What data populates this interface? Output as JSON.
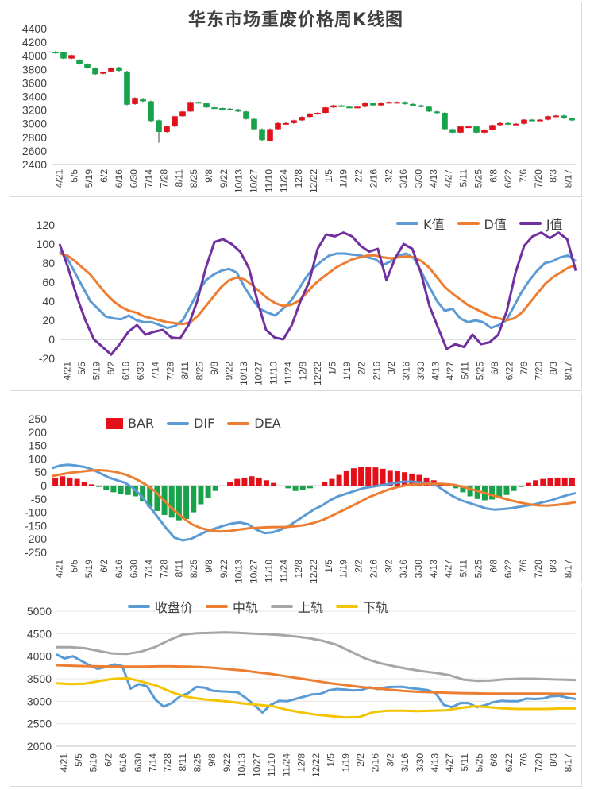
{
  "x_ticks": [
    "4/21",
    "5/5",
    "5/19",
    "6/2",
    "6/16",
    "6/30",
    "7/14",
    "7/28",
    "8/11",
    "8/25",
    "9/8",
    "9/22",
    "10/13",
    "10/27",
    "11/10",
    "11/24",
    "12/8",
    "12/22",
    "1/5",
    "1/19",
    "2/2",
    "2/16",
    "3/2",
    "3/16",
    "3/30",
    "4/13",
    "4/27",
    "5/11",
    "5/25",
    "6/8",
    "6/22",
    "7/6",
    "7/20",
    "8/3",
    "8/17"
  ],
  "chart_data": [
    {
      "type": "candlestick",
      "title": "华东市场重废价格周K线图",
      "ylim": [
        2400,
        4400
      ],
      "yticks": [
        2400,
        2600,
        2800,
        3000,
        3200,
        3400,
        3600,
        3800,
        4000,
        4200,
        4400
      ],
      "colors": {
        "up": "#e3101a",
        "down": "#17a34a"
      },
      "candles": [
        {
          "o": 4060,
          "c": 4040,
          "h": 4070,
          "l": 4030
        },
        {
          "o": 4050,
          "c": 3960,
          "h": 4060,
          "l": 3950
        },
        {
          "o": 3960,
          "c": 4010,
          "h": 4020,
          "l": 3950
        },
        {
          "o": 3940,
          "c": 3880,
          "h": 3950,
          "l": 3870
        },
        {
          "o": 3880,
          "c": 3820,
          "h": 3890,
          "l": 3810
        },
        {
          "o": 3820,
          "c": 3730,
          "h": 3830,
          "l": 3720
        },
        {
          "o": 3740,
          "c": 3760,
          "h": 3770,
          "l": 3730
        },
        {
          "o": 3770,
          "c": 3820,
          "h": 3830,
          "l": 3760
        },
        {
          "o": 3830,
          "c": 3780,
          "h": 3840,
          "l": 3770
        },
        {
          "o": 3770,
          "c": 3280,
          "h": 3780,
          "l": 3270
        },
        {
          "o": 3290,
          "c": 3380,
          "h": 3390,
          "l": 3280
        },
        {
          "o": 3370,
          "c": 3330,
          "h": 3380,
          "l": 3320
        },
        {
          "o": 3330,
          "c": 3040,
          "h": 3340,
          "l": 3030
        },
        {
          "o": 3050,
          "c": 2880,
          "h": 3060,
          "l": 2720
        },
        {
          "o": 2880,
          "c": 2960,
          "h": 2970,
          "l": 2870
        },
        {
          "o": 2960,
          "c": 3110,
          "h": 3120,
          "l": 2950
        },
        {
          "o": 3110,
          "c": 3180,
          "h": 3190,
          "l": 3100
        },
        {
          "o": 3180,
          "c": 3320,
          "h": 3330,
          "l": 3170
        },
        {
          "o": 3320,
          "c": 3310,
          "h": 3330,
          "l": 3300
        },
        {
          "o": 3300,
          "c": 3240,
          "h": 3310,
          "l": 3230
        },
        {
          "o": 3240,
          "c": 3230,
          "h": 3250,
          "l": 3220
        },
        {
          "o": 3230,
          "c": 3220,
          "h": 3240,
          "l": 3210
        },
        {
          "o": 3220,
          "c": 3210,
          "h": 3230,
          "l": 3200
        },
        {
          "o": 3210,
          "c": 3180,
          "h": 3220,
          "l": 3170
        },
        {
          "o": 3180,
          "c": 3070,
          "h": 3190,
          "l": 3060
        },
        {
          "o": 3070,
          "c": 2920,
          "h": 3080,
          "l": 2910
        },
        {
          "o": 2920,
          "c": 2760,
          "h": 2930,
          "l": 2750
        },
        {
          "o": 2750,
          "c": 2920,
          "h": 2930,
          "l": 2740
        },
        {
          "o": 2920,
          "c": 3010,
          "h": 3020,
          "l": 2910
        },
        {
          "o": 3000,
          "c": 3010,
          "h": 3020,
          "l": 2990
        },
        {
          "o": 3010,
          "c": 3050,
          "h": 3060,
          "l": 3000
        },
        {
          "o": 3050,
          "c": 3100,
          "h": 3110,
          "l": 3040
        },
        {
          "o": 3100,
          "c": 3150,
          "h": 3160,
          "l": 3090
        },
        {
          "o": 3140,
          "c": 3160,
          "h": 3170,
          "l": 3130
        },
        {
          "o": 3160,
          "c": 3240,
          "h": 3250,
          "l": 3150
        },
        {
          "o": 3240,
          "c": 3270,
          "h": 3280,
          "l": 3230
        },
        {
          "o": 3270,
          "c": 3260,
          "h": 3280,
          "l": 3250
        },
        {
          "o": 3250,
          "c": 3240,
          "h": 3260,
          "l": 3240
        },
        {
          "o": 3240,
          "c": 3250,
          "h": 3260,
          "l": 3230
        },
        {
          "o": 3250,
          "c": 3310,
          "h": 3320,
          "l": 3240
        },
        {
          "o": 3300,
          "c": 3270,
          "h": 3310,
          "l": 3260
        },
        {
          "o": 3270,
          "c": 3310,
          "h": 3320,
          "l": 3260
        },
        {
          "o": 3310,
          "c": 3320,
          "h": 3330,
          "l": 3300
        },
        {
          "o": 3320,
          "c": 3320,
          "h": 3330,
          "l": 3310
        },
        {
          "o": 3320,
          "c": 3290,
          "h": 3330,
          "l": 3280
        },
        {
          "o": 3290,
          "c": 3270,
          "h": 3300,
          "l": 3260
        },
        {
          "o": 3270,
          "c": 3250,
          "h": 3280,
          "l": 3240
        },
        {
          "o": 3250,
          "c": 3180,
          "h": 3260,
          "l": 3170
        },
        {
          "o": 3180,
          "c": 3160,
          "h": 3190,
          "l": 3150
        },
        {
          "o": 3160,
          "c": 2920,
          "h": 3170,
          "l": 2910
        },
        {
          "o": 2920,
          "c": 2870,
          "h": 2930,
          "l": 2860
        },
        {
          "o": 2870,
          "c": 2960,
          "h": 2970,
          "l": 2860
        },
        {
          "o": 2960,
          "c": 2960,
          "h": 2970,
          "l": 2950
        },
        {
          "o": 2960,
          "c": 2870,
          "h": 2970,
          "l": 2860
        },
        {
          "o": 2870,
          "c": 2910,
          "h": 2920,
          "l": 2860
        },
        {
          "o": 2910,
          "c": 2980,
          "h": 2990,
          "l": 2900
        },
        {
          "o": 2980,
          "c": 3010,
          "h": 3020,
          "l": 2970
        },
        {
          "o": 3010,
          "c": 3000,
          "h": 3020,
          "l": 2990
        },
        {
          "o": 3000,
          "c": 3000,
          "h": 3010,
          "l": 2990
        },
        {
          "o": 3000,
          "c": 3060,
          "h": 3070,
          "l": 2990
        },
        {
          "o": 3060,
          "c": 3050,
          "h": 3070,
          "l": 3040
        },
        {
          "o": 3050,
          "c": 3060,
          "h": 3070,
          "l": 3040
        },
        {
          "o": 3060,
          "c": 3110,
          "h": 3120,
          "l": 3050
        },
        {
          "o": 3110,
          "c": 3120,
          "h": 3130,
          "l": 3100
        },
        {
          "o": 3120,
          "c": 3080,
          "h": 3130,
          "l": 3070
        },
        {
          "o": 3080,
          "c": 3050,
          "h": 3090,
          "l": 3040
        }
      ]
    },
    {
      "type": "line",
      "title": "",
      "ylim": [
        -20,
        120
      ],
      "yticks": [
        -20,
        0,
        20,
        40,
        60,
        80,
        100,
        120
      ],
      "series": [
        {
          "name": "K值",
          "color": "#5b9bd5",
          "values": [
            92,
            85,
            70,
            55,
            40,
            32,
            24,
            22,
            21,
            25,
            20,
            18,
            18,
            15,
            12,
            14,
            20,
            35,
            50,
            62,
            68,
            72,
            74,
            70,
            55,
            42,
            32,
            28,
            25,
            32,
            40,
            52,
            65,
            75,
            82,
            88,
            90,
            90,
            89,
            88,
            86,
            84,
            78,
            82,
            88,
            90,
            85,
            70,
            55,
            40,
            30,
            32,
            22,
            18,
            20,
            18,
            12,
            15,
            20,
            35,
            50,
            62,
            72,
            80,
            82,
            86,
            88,
            82
          ]
        },
        {
          "name": "D值",
          "color": "#ed7d31",
          "values": [
            90,
            88,
            82,
            75,
            68,
            58,
            48,
            40,
            34,
            30,
            28,
            24,
            22,
            20,
            18,
            17,
            16,
            18,
            25,
            35,
            45,
            55,
            62,
            65,
            63,
            57,
            50,
            43,
            38,
            35,
            36,
            40,
            48,
            57,
            64,
            70,
            76,
            80,
            84,
            86,
            88,
            88,
            86,
            85,
            86,
            87,
            86,
            82,
            75,
            65,
            55,
            48,
            42,
            36,
            32,
            28,
            24,
            22,
            20,
            22,
            28,
            38,
            48,
            58,
            65,
            70,
            75,
            78
          ]
        },
        {
          "name": "J值",
          "color": "#7030a0",
          "values": [
            100,
            75,
            45,
            20,
            0,
            -8,
            -16,
            -5,
            8,
            15,
            5,
            8,
            10,
            2,
            1,
            15,
            40,
            75,
            102,
            105,
            100,
            92,
            75,
            40,
            10,
            2,
            0,
            15,
            40,
            60,
            95,
            110,
            108,
            112,
            108,
            98,
            92,
            95,
            62,
            85,
            100,
            95,
            70,
            35,
            12,
            -10,
            -5,
            -8,
            5,
            -5,
            -3,
            5,
            30,
            70,
            98,
            108,
            112,
            106,
            112,
            105,
            72
          ]
        }
      ]
    },
    {
      "type": "bar+line",
      "title": "",
      "ylim": [
        -250,
        250
      ],
      "yticks": [
        -250,
        -200,
        -150,
        -100,
        -50,
        0,
        50,
        100,
        150,
        200,
        250
      ],
      "bar_series": {
        "name": "BAR",
        "pos_color": "#e3101a",
        "neg_color": "#17a34a",
        "values": [
          30,
          35,
          30,
          25,
          15,
          5,
          -5,
          -15,
          -25,
          -30,
          -35,
          -40,
          -60,
          -80,
          -95,
          -110,
          -120,
          -130,
          -125,
          -100,
          -70,
          -45,
          -20,
          0,
          15,
          25,
          30,
          35,
          30,
          20,
          10,
          0,
          -10,
          -20,
          -15,
          -10,
          0,
          15,
          25,
          40,
          55,
          65,
          70,
          70,
          68,
          63,
          58,
          55,
          50,
          45,
          40,
          30,
          20,
          10,
          5,
          -10,
          -25,
          -40,
          -50,
          -55,
          -52,
          -45,
          -35,
          -20,
          -5,
          10,
          20,
          25,
          28,
          30,
          30,
          30
        ]
      },
      "series": [
        {
          "name": "DIF",
          "color": "#5b9bd5",
          "values": [
            65,
            75,
            78,
            75,
            70,
            60,
            45,
            30,
            20,
            10,
            -10,
            -40,
            -80,
            -120,
            -160,
            -195,
            -205,
            -200,
            -185,
            -170,
            -160,
            -150,
            -142,
            -138,
            -145,
            -165,
            -178,
            -175,
            -165,
            -150,
            -130,
            -110,
            -90,
            -75,
            -55,
            -40,
            -30,
            -20,
            -10,
            -5,
            0,
            5,
            10,
            15,
            15,
            12,
            10,
            0,
            -20,
            -40,
            -55,
            -65,
            -75,
            -85,
            -90,
            -88,
            -85,
            -80,
            -75,
            -70,
            -62,
            -55,
            -45,
            -35,
            -28
          ]
        },
        {
          "name": "DEA",
          "color": "#ed7d31",
          "values": [
            35,
            42,
            48,
            52,
            56,
            58,
            56,
            50,
            40,
            25,
            5,
            -20,
            -55,
            -90,
            -120,
            -145,
            -160,
            -168,
            -172,
            -170,
            -165,
            -160,
            -158,
            -156,
            -155,
            -155,
            -152,
            -148,
            -140,
            -128,
            -112,
            -95,
            -78,
            -60,
            -42,
            -28,
            -15,
            -5,
            2,
            5,
            6,
            7,
            6,
            3,
            -5,
            -15,
            -25,
            -35,
            -45,
            -55,
            -63,
            -70,
            -74,
            -75,
            -72,
            -68,
            -62
          ]
        }
      ]
    },
    {
      "type": "line",
      "title": "",
      "ylim": [
        2000,
        5000
      ],
      "yticks": [
        2000,
        2500,
        3000,
        3500,
        4000,
        4500,
        5000
      ],
      "series": [
        {
          "name": "收盘价",
          "color": "#5b9bd5",
          "values": [
            4040,
            3950,
            4000,
            3900,
            3800,
            3720,
            3760,
            3820,
            3780,
            3280,
            3380,
            3330,
            3040,
            2880,
            2960,
            3110,
            3180,
            3320,
            3300,
            3230,
            3220,
            3210,
            3200,
            3070,
            2920,
            2750,
            2920,
            3010,
            3000,
            3050,
            3100,
            3150,
            3160,
            3240,
            3270,
            3260,
            3240,
            3250,
            3310,
            3270,
            3310,
            3320,
            3320,
            3290,
            3270,
            3250,
            3180,
            2920,
            2870,
            2960,
            2960,
            2870,
            2910,
            2980,
            3010,
            3000,
            3000,
            3060,
            3050,
            3060,
            3110,
            3120,
            3080,
            3050
          ]
        },
        {
          "name": "中轨",
          "color": "#ed7d31",
          "values": [
            3800,
            3790,
            3780,
            3775,
            3770,
            3770,
            3770,
            3775,
            3775,
            3770,
            3760,
            3740,
            3710,
            3680,
            3640,
            3600,
            3550,
            3500,
            3450,
            3400,
            3360,
            3320,
            3290,
            3260,
            3230,
            3210,
            3200,
            3190,
            3180,
            3175,
            3170,
            3170,
            3170,
            3170,
            3170,
            3165,
            3160
          ]
        },
        {
          "name": "上轨",
          "color": "#a6a6a6",
          "values": [
            4200,
            4200,
            4180,
            4120,
            4060,
            4050,
            4100,
            4200,
            4350,
            4480,
            4510,
            4520,
            4530,
            4520,
            4500,
            4490,
            4470,
            4440,
            4400,
            4340,
            4250,
            4100,
            3950,
            3850,
            3780,
            3720,
            3670,
            3630,
            3580,
            3480,
            3450,
            3460,
            3490,
            3500,
            3500,
            3490,
            3480,
            3470
          ]
        },
        {
          "name": "下轨",
          "color": "#f5c400",
          "values": [
            3400,
            3380,
            3390,
            3450,
            3500,
            3510,
            3430,
            3340,
            3200,
            3100,
            3050,
            3020,
            2990,
            2950,
            2920,
            2890,
            2810,
            2750,
            2700,
            2670,
            2640,
            2650,
            2760,
            2790,
            2790,
            2780,
            2790,
            2800,
            2850,
            2890,
            2870,
            2840,
            2830,
            2830,
            2830,
            2840,
            2840
          ]
        }
      ]
    }
  ]
}
